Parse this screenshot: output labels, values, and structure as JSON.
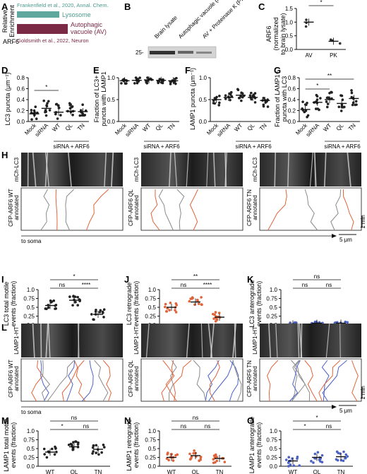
{
  "panels": {
    "A": {
      "letter": "A",
      "ylabel_line1": "Relative",
      "ylabel_line2": "Enrichment",
      "row_label": "ARF6",
      "citation_top": "Frankenfield et al., 2020, Annal. Chem.",
      "citation_bottom": "Goldsmith et al., 2022, Neuron",
      "bar1_label": "Lysosome",
      "bar2_label_line1": "Autophagic",
      "bar2_label_line2": "vacuole (AV)",
      "color_lysosome": "#5fa89e",
      "color_av": "#7a2a44"
    },
    "B": {
      "letter": "B",
      "lane_labels": [
        "Brain lysate",
        "Autophagic vacuole (AV)",
        "AV + Proteinase K (PK)"
      ],
      "mw_marker": "25-"
    },
    "C": {
      "letter": "C",
      "ylabel_line1": "ARF6",
      "ylabel_line2": "(normalized",
      "ylabel_line3": "to brain lysate)",
      "yticks": [
        "0.0",
        "0.5",
        "1.0",
        "1.5"
      ],
      "xlabels": [
        "AV",
        "PK"
      ],
      "significance": "*"
    },
    "D": {
      "letter": "D",
      "ylabel": "LC3 puncta (μm⁻¹)",
      "yticks": [
        "0.0",
        "0.2",
        "0.4",
        "0.6",
        "0.8"
      ],
      "significance": "*"
    },
    "E": {
      "letter": "E",
      "ylabel_line1": "Fraction of LC3+",
      "ylabel_line2": "puncta with LAMP1",
      "yticks": [
        "0.0",
        "0.5",
        "1.0"
      ]
    },
    "F": {
      "letter": "F",
      "ylabel": "LAMP1 puncta (μm⁻¹)",
      "yticks": [
        "0.0",
        "0.5",
        "1.0"
      ]
    },
    "G": {
      "letter": "G",
      "ylabel_line1": "Fraction of LAMP1+",
      "ylabel_line2": "puncta with LC3",
      "yticks": [
        "0.0",
        "0.2",
        "0.4",
        "0.6",
        "0.8"
      ],
      "significance_1": "*",
      "significance_2": "**"
    },
    "conditions": {
      "xlabels": [
        "Mock",
        "siRNA",
        "WT",
        "QL",
        "TN"
      ],
      "group_label": "siRNA + ARF6"
    },
    "H": {
      "letter": "H",
      "kymo_labels": [
        {
          "top": "mCh-LC3",
          "bottom": "CFP-ARF6 WT"
        },
        {
          "top": "mCh-LC3",
          "bottom": "CFP-ARF6 QL"
        },
        {
          "top": "mCh-LC3",
          "bottom": "CFP-ARF6 TN"
        }
      ],
      "annotated": "annotated",
      "to_soma": "to soma",
      "scale_time": "1 min",
      "scale_space": "5 μm"
    },
    "I": {
      "letter": "I",
      "ylabel_line1": "LC3 total motile",
      "ylabel_line2": "events (fraction)",
      "yticks": [
        "0.0",
        "0.25",
        "0.5",
        "0.75",
        "1.0"
      ],
      "sig_top": "*",
      "sig_a": "ns",
      "sig_b": "****"
    },
    "J": {
      "letter": "J",
      "ylabel_line1": "LC3 retrograde",
      "ylabel_line2": "events (fraction)",
      "yticks": [
        "0.0",
        "0.25",
        "0.5",
        "0.75",
        "1.0"
      ],
      "sig_top": "**",
      "sig_a": "ns",
      "sig_b": "****"
    },
    "K": {
      "letter": "K",
      "ylabel_line1": "LC3 anterograde",
      "ylabel_line2": "events (fraction)",
      "yticks": [
        "0.0",
        "0.25",
        "0.5",
        "0.75",
        "1.0"
      ],
      "sig_top": "ns",
      "sig_a": "ns",
      "sig_b": "ns"
    },
    "L": {
      "letter": "L",
      "kymo_labels": [
        {
          "top": "LAMP1-HT",
          "bottom": "CFP-ARF6 WT"
        },
        {
          "top": "LAMP1-HT",
          "bottom": "CFP-ARF6 QL"
        },
        {
          "top": "LAMP1-HT",
          "bottom": "CFP-ARF6 TN"
        }
      ],
      "annotated": "annotated",
      "to_soma": "to soma",
      "scale_time": "1 min",
      "scale_space": "5 μm"
    },
    "M": {
      "letter": "M",
      "ylabel_line1": "LAMP1 total motile",
      "ylabel_line2": "events (fraction)",
      "yticks": [
        "0.0",
        "0.25",
        "0.5",
        "0.75",
        "1.0"
      ],
      "sig_top": "ns",
      "sig_a": "*",
      "sig_b": "ns"
    },
    "N": {
      "letter": "N",
      "ylabel_line1": "LAMP1 retrograde",
      "ylabel_line2": "events (fraction)",
      "yticks": [
        "0.0",
        "0.25",
        "0.5",
        "0.75",
        "1.0"
      ],
      "sig_top": "ns",
      "sig_a": "ns",
      "sig_b": "ns"
    },
    "O": {
      "letter": "O",
      "ylabel_line1": "LAMP1 anterograde",
      "ylabel_line2": "events (fraction)",
      "yticks": [
        "0.0",
        "0.25",
        "0.5",
        "0.75",
        "1.0"
      ],
      "sig_top": "*",
      "sig_a": "*",
      "sig_b": "ns"
    },
    "genotypes": [
      "WT",
      "QL",
      "TN"
    ]
  },
  "colors": {
    "lc3_orange": "#e0643a",
    "retro_orange": "#e0643a",
    "antero_blue": "#4c62c4",
    "gray_track": "#8a8a8a"
  },
  "chart_data": [
    {
      "panel": "C",
      "type": "scatter",
      "categories": [
        "AV",
        "PK"
      ],
      "values": [
        1.0,
        0.3
      ],
      "ylim": [
        0,
        1.5
      ]
    },
    {
      "panel": "D",
      "type": "scatter",
      "categories": [
        "Mock",
        "siRNA",
        "WT",
        "QL",
        "TN"
      ],
      "values": [
        0.14,
        0.24,
        0.17,
        0.19,
        0.18
      ],
      "ylim": [
        0,
        0.8
      ]
    },
    {
      "panel": "E",
      "type": "scatter",
      "categories": [
        "Mock",
        "siRNA",
        "WT",
        "QL",
        "TN"
      ],
      "values": [
        0.93,
        0.94,
        0.95,
        0.94,
        0.93
      ],
      "ylim": [
        0,
        1.0
      ]
    },
    {
      "panel": "F",
      "type": "scatter",
      "categories": [
        "Mock",
        "siRNA",
        "WT",
        "QL",
        "TN"
      ],
      "values": [
        0.5,
        0.55,
        0.6,
        0.55,
        0.48
      ],
      "ylim": [
        0,
        1.0
      ]
    },
    {
      "panel": "G",
      "type": "scatter",
      "categories": [
        "Mock",
        "siRNA",
        "WT",
        "QL",
        "TN"
      ],
      "values": [
        0.22,
        0.35,
        0.4,
        0.33,
        0.42
      ],
      "ylim": [
        0,
        0.8
      ]
    },
    {
      "panel": "I",
      "type": "scatter",
      "categories": [
        "WT",
        "QL",
        "TN"
      ],
      "values": [
        0.55,
        0.7,
        0.3
      ],
      "ylim": [
        0,
        1.0
      ]
    },
    {
      "panel": "J",
      "type": "scatter",
      "categories": [
        "WT",
        "QL",
        "TN"
      ],
      "values": [
        0.5,
        0.65,
        0.22
      ],
      "ylim": [
        0,
        1.0
      ]
    },
    {
      "panel": "K",
      "type": "scatter",
      "categories": [
        "WT",
        "QL",
        "TN"
      ],
      "values": [
        0.03,
        0.05,
        0.05
      ],
      "ylim": [
        0,
        1.0
      ]
    },
    {
      "panel": "M",
      "type": "scatter",
      "categories": [
        "WT",
        "QL",
        "TN"
      ],
      "values": [
        0.4,
        0.55,
        0.48
      ],
      "ylim": [
        0,
        1.0
      ]
    },
    {
      "panel": "N",
      "type": "scatter",
      "categories": [
        "WT",
        "QL",
        "TN"
      ],
      "values": [
        0.25,
        0.3,
        0.22
      ],
      "ylim": [
        0,
        1.0
      ]
    },
    {
      "panel": "O",
      "type": "scatter",
      "categories": [
        "WT",
        "QL",
        "TN"
      ],
      "values": [
        0.15,
        0.25,
        0.27
      ],
      "ylim": [
        0,
        1.0
      ]
    }
  ]
}
